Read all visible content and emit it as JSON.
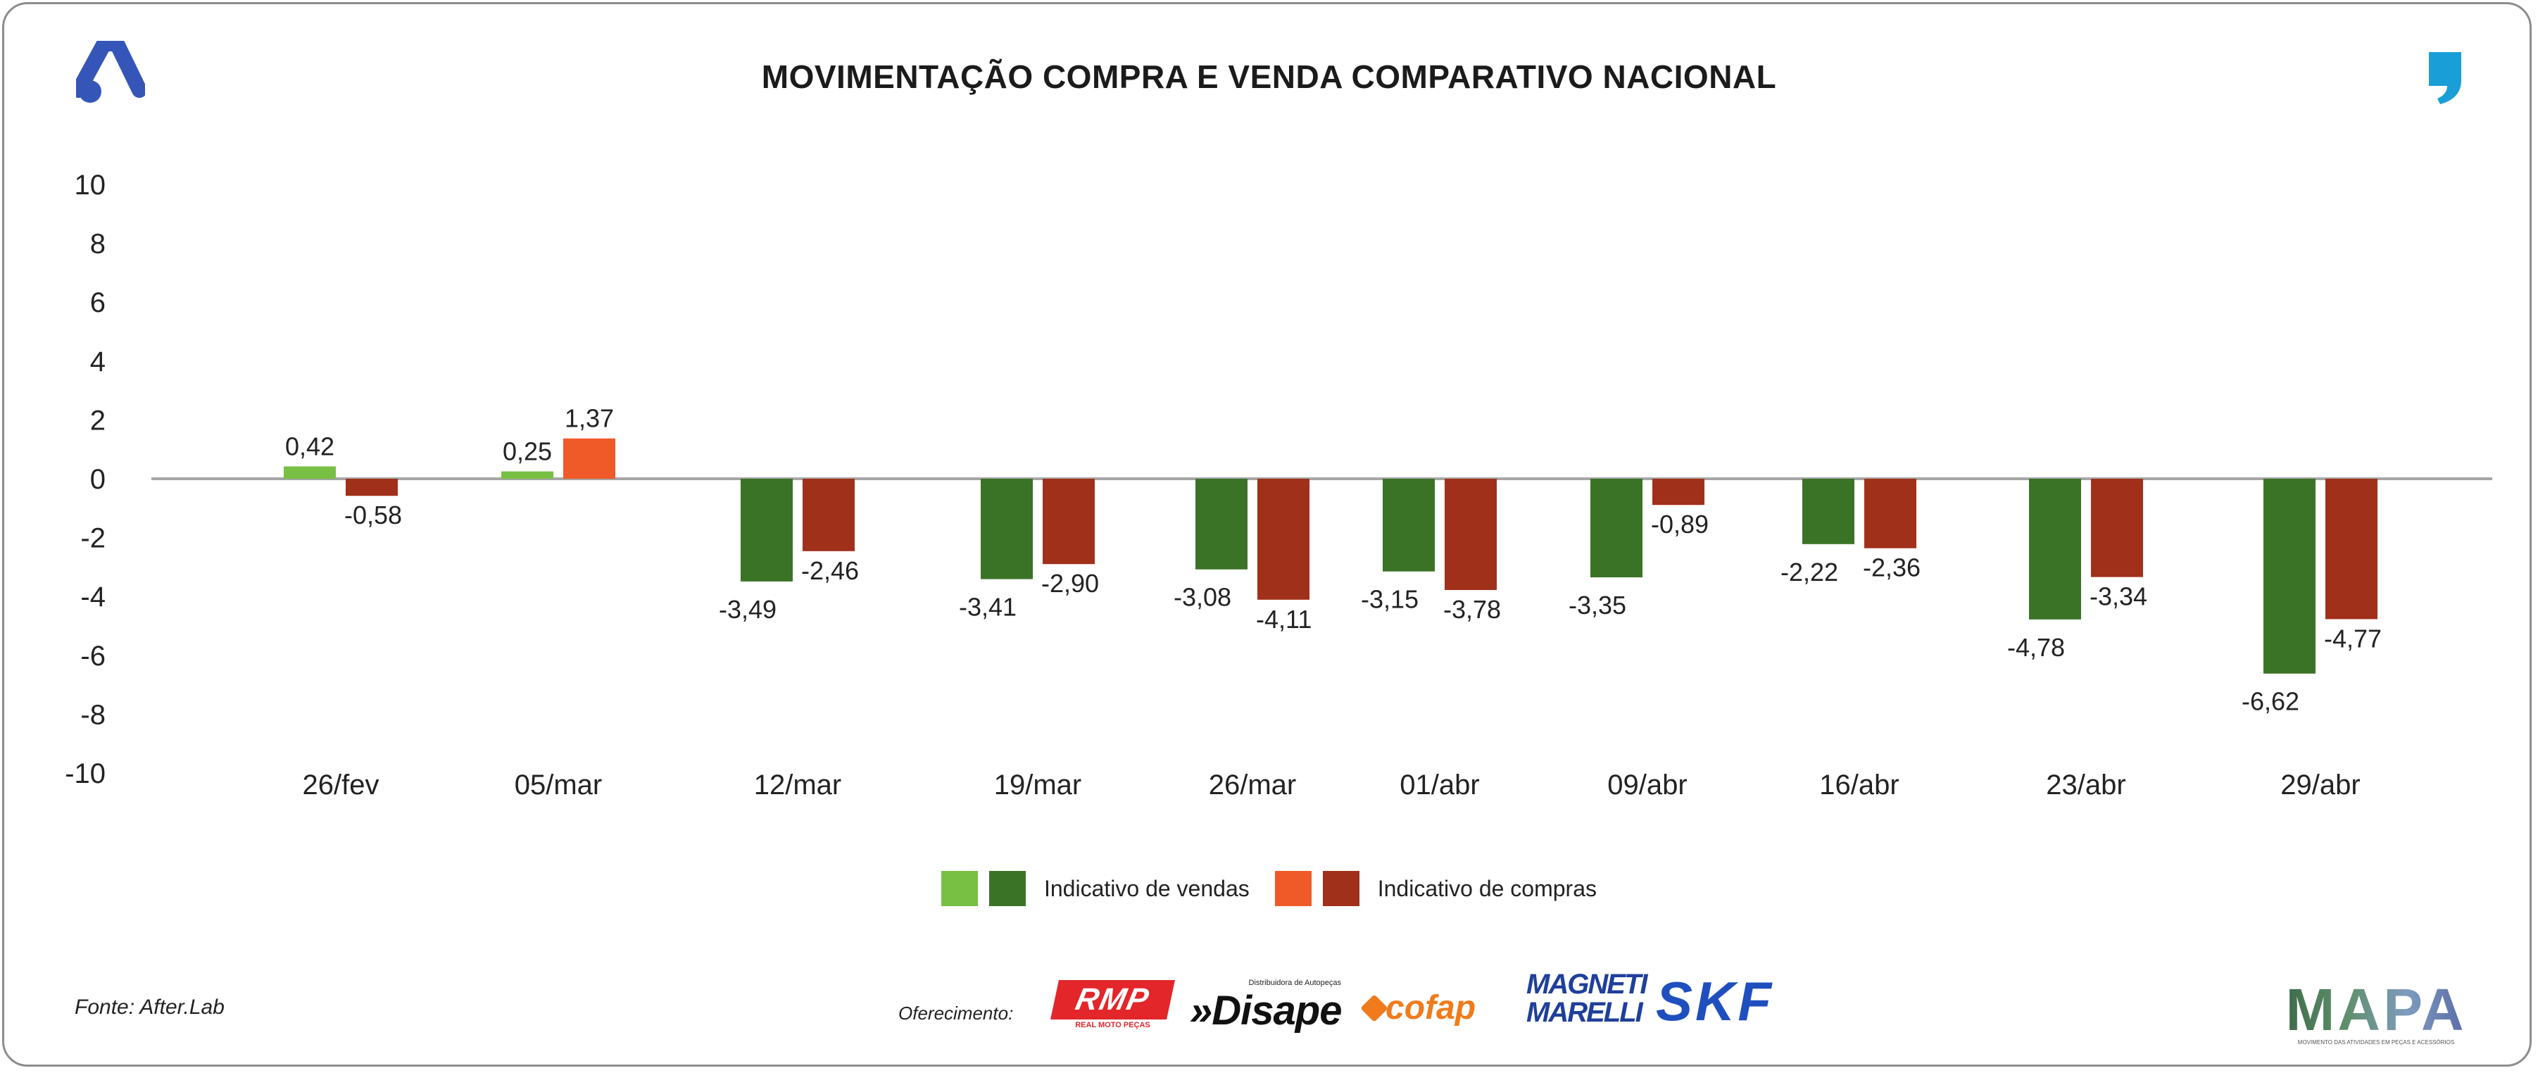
{
  "header": {
    "title": "MOVIMENTAÇÃO COMPRA E VENDA COMPARATIVO NACIONAL"
  },
  "chart_data": {
    "type": "bar",
    "title": "MOVIMENTAÇÃO COMPRA E VENDA COMPARATIVO NACIONAL",
    "xlabel": "",
    "ylabel": "",
    "ylim": [
      -10,
      10
    ],
    "yticks": [
      10,
      8,
      6,
      4,
      2,
      0,
      -2,
      -4,
      -6,
      -8,
      -10
    ],
    "grid": false,
    "legend_position": "bottom-center",
    "categories": [
      "26/fev",
      "05/mar",
      "12/mar",
      "19/mar",
      "26/mar",
      "01/abr",
      "09/abr",
      "16/abr",
      "23/abr",
      "29/abr"
    ],
    "series": [
      {
        "name": "Indicativo de vendas",
        "values": [
          0.42,
          0.25,
          -3.49,
          -3.41,
          -3.08,
          -3.15,
          -3.35,
          -2.22,
          -4.78,
          -6.62
        ],
        "labels": [
          "0,42",
          "0,25",
          "-3,49",
          "-3,41",
          "-3,08",
          "-3,15",
          "-3,35",
          "-2,22",
          "-4,78",
          "-6,62"
        ]
      },
      {
        "name": "Indicativo de compras",
        "values": [
          -0.58,
          1.37,
          -2.46,
          -2.9,
          -4.11,
          -3.78,
          -0.89,
          -2.36,
          -3.34,
          -4.77
        ],
        "labels": [
          "-0,58",
          "1,37",
          "-2,46",
          "-2,90",
          "-4,11",
          "-3,78",
          "-0,89",
          "-2,36",
          "-3,34",
          "-4,77"
        ]
      }
    ]
  },
  "colors": {
    "sales_positive": "#77c043",
    "sales_negative": "#3b7326",
    "purchases_positive": "#f05a28",
    "purchases_negative": "#a1301a",
    "axis": "#a6a6a6",
    "text": "#222222"
  },
  "legend": {
    "sales_label": "Indicativo de vendas",
    "purchases_label": "Indicativo de compras"
  },
  "footer": {
    "source": "Fonte: After.Lab",
    "sponsor_label": "Oferecimento:",
    "sponsors": {
      "rmp": "RMP",
      "rmp_sub": "REAL MOTO PEÇAS",
      "disape": "»Disape",
      "disape_sub": "Distribuidora de Autopeças",
      "cofap": "cofap",
      "magneti_line1": "MAGNETI",
      "magneti_line2": "MARELLI",
      "skf": "SKF",
      "mapa": "MAPA",
      "mapa_sub": "MOVIMENTO DAS ATIVIDADES EM PEÇAS E ACESSÓRIOS"
    }
  }
}
